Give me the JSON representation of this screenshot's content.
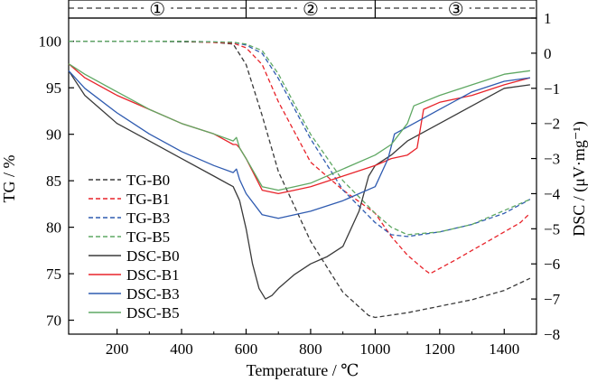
{
  "chart_data": {
    "type": "line",
    "xlabel": "Temperature / ℃",
    "ylabel_left": "TG / %",
    "ylabel_right": "DSC / (μV·mg⁻¹)",
    "xlim": [
      50,
      1500
    ],
    "ylim_left": [
      68.5,
      102.5
    ],
    "ylim_right": [
      -8,
      1
    ],
    "x_ticks": [
      200,
      400,
      600,
      800,
      1000,
      1200,
      1400
    ],
    "y_left_ticks": [
      70,
      75,
      80,
      85,
      90,
      95,
      100
    ],
    "y_right_ticks": [
      -8,
      -7,
      -6,
      -5,
      -4,
      -3,
      -2,
      -1,
      0,
      1
    ],
    "stage_labels": [
      "①",
      "②",
      "③"
    ],
    "stage_bounds": [
      600,
      1000
    ],
    "series": [
      {
        "name": "TG-B0",
        "axis": "left",
        "style": "dashed",
        "color": "#3a3a3a",
        "x": [
          50,
          300,
          500,
          560,
          600,
          650,
          700,
          800,
          900,
          980,
          1000,
          1100,
          1200,
          1300,
          1400,
          1480
        ],
        "y": [
          100,
          100,
          99.9,
          99.7,
          97.5,
          92,
          86,
          78.5,
          73,
          70.5,
          70.3,
          70.8,
          71.5,
          72.2,
          73.2,
          74.5
        ]
      },
      {
        "name": "TG-B1",
        "axis": "left",
        "style": "dashed",
        "color": "#e8232a",
        "x": [
          50,
          400,
          560,
          600,
          650,
          700,
          800,
          900,
          1000,
          1050,
          1100,
          1150,
          1170,
          1250,
          1350,
          1450,
          1480
        ],
        "y": [
          100,
          100,
          99.8,
          99.3,
          97.5,
          93.5,
          87,
          84,
          81.5,
          79,
          77,
          75.5,
          75,
          76.5,
          78.5,
          80.5,
          81.5
        ]
      },
      {
        "name": "TG-B3",
        "axis": "left",
        "style": "dashed",
        "color": "#2f5bb0",
        "x": [
          50,
          400,
          560,
          600,
          650,
          700,
          800,
          900,
          1000,
          1050,
          1100,
          1200,
          1300,
          1400,
          1480
        ],
        "y": [
          100,
          100,
          99.9,
          99.6,
          98.7,
          96,
          89.5,
          84,
          80.5,
          79.2,
          79,
          79.5,
          80.3,
          81.5,
          83
        ]
      },
      {
        "name": "TG-B5",
        "axis": "left",
        "style": "dashed",
        "color": "#5fa863",
        "x": [
          50,
          400,
          560,
          600,
          650,
          700,
          800,
          900,
          1000,
          1050,
          1100,
          1200,
          1300,
          1400,
          1480
        ],
        "y": [
          100,
          100,
          99.9,
          99.7,
          99,
          96.5,
          90,
          85,
          81.5,
          80,
          79.2,
          79.5,
          80.3,
          81.8,
          83
        ]
      },
      {
        "name": "DSC-B0",
        "axis": "right",
        "style": "solid",
        "color": "#3a3a3a",
        "x": [
          50,
          100,
          200,
          300,
          400,
          500,
          560,
          580,
          600,
          620,
          640,
          660,
          680,
          700,
          750,
          800,
          850,
          900,
          950,
          980,
          1000,
          1050,
          1100,
          1200,
          1300,
          1380,
          1400,
          1480
        ],
        "y": [
          -0.5,
          -1.2,
          -2.0,
          -2.5,
          -3.0,
          -3.5,
          -3.8,
          -4.2,
          -5.0,
          -6.0,
          -6.7,
          -7.0,
          -6.9,
          -6.7,
          -6.3,
          -6.0,
          -5.8,
          -5.5,
          -4.5,
          -3.5,
          -3.2,
          -2.9,
          -2.5,
          -2.0,
          -1.5,
          -1.1,
          -1.0,
          -0.9
        ]
      },
      {
        "name": "DSC-B1",
        "axis": "right",
        "style": "solid",
        "color": "#e8232a",
        "x": [
          50,
          100,
          200,
          300,
          400,
          500,
          560,
          570,
          580,
          600,
          650,
          700,
          750,
          800,
          900,
          1000,
          1050,
          1100,
          1130,
          1150,
          1200,
          1300,
          1400,
          1480
        ],
        "y": [
          -0.3,
          -0.7,
          -1.2,
          -1.6,
          -2.0,
          -2.3,
          -2.6,
          -2.6,
          -2.7,
          -3.0,
          -3.9,
          -4.0,
          -3.9,
          -3.8,
          -3.5,
          -3.2,
          -3.0,
          -2.9,
          -2.7,
          -1.6,
          -1.4,
          -1.2,
          -0.9,
          -0.7
        ]
      },
      {
        "name": "DSC-B3",
        "axis": "right",
        "style": "solid",
        "color": "#2f5bb0",
        "x": [
          50,
          100,
          200,
          300,
          400,
          500,
          560,
          570,
          580,
          600,
          650,
          700,
          800,
          900,
          1000,
          1040,
          1060,
          1100,
          1200,
          1300,
          1400,
          1480
        ],
        "y": [
          -0.5,
          -1.0,
          -1.7,
          -2.3,
          -2.8,
          -3.2,
          -3.4,
          -3.3,
          -3.6,
          -4.0,
          -4.6,
          -4.7,
          -4.5,
          -4.2,
          -3.8,
          -3.0,
          -2.3,
          -2.1,
          -1.6,
          -1.1,
          -0.8,
          -0.7
        ]
      },
      {
        "name": "DSC-B5",
        "axis": "right",
        "style": "solid",
        "color": "#5fa863",
        "x": [
          50,
          100,
          200,
          300,
          400,
          500,
          560,
          570,
          580,
          600,
          650,
          700,
          750,
          800,
          900,
          1000,
          1050,
          1100,
          1120,
          1200,
          1300,
          1400,
          1480
        ],
        "y": [
          -0.3,
          -0.6,
          -1.1,
          -1.6,
          -2.0,
          -2.3,
          -2.5,
          -2.4,
          -2.7,
          -3.0,
          -3.8,
          -3.9,
          -3.8,
          -3.7,
          -3.3,
          -2.9,
          -2.6,
          -2.0,
          -1.5,
          -1.2,
          -0.9,
          -0.6,
          -0.5
        ]
      }
    ],
    "legend": {
      "placement": "left-lower"
    },
    "grid": false
  }
}
